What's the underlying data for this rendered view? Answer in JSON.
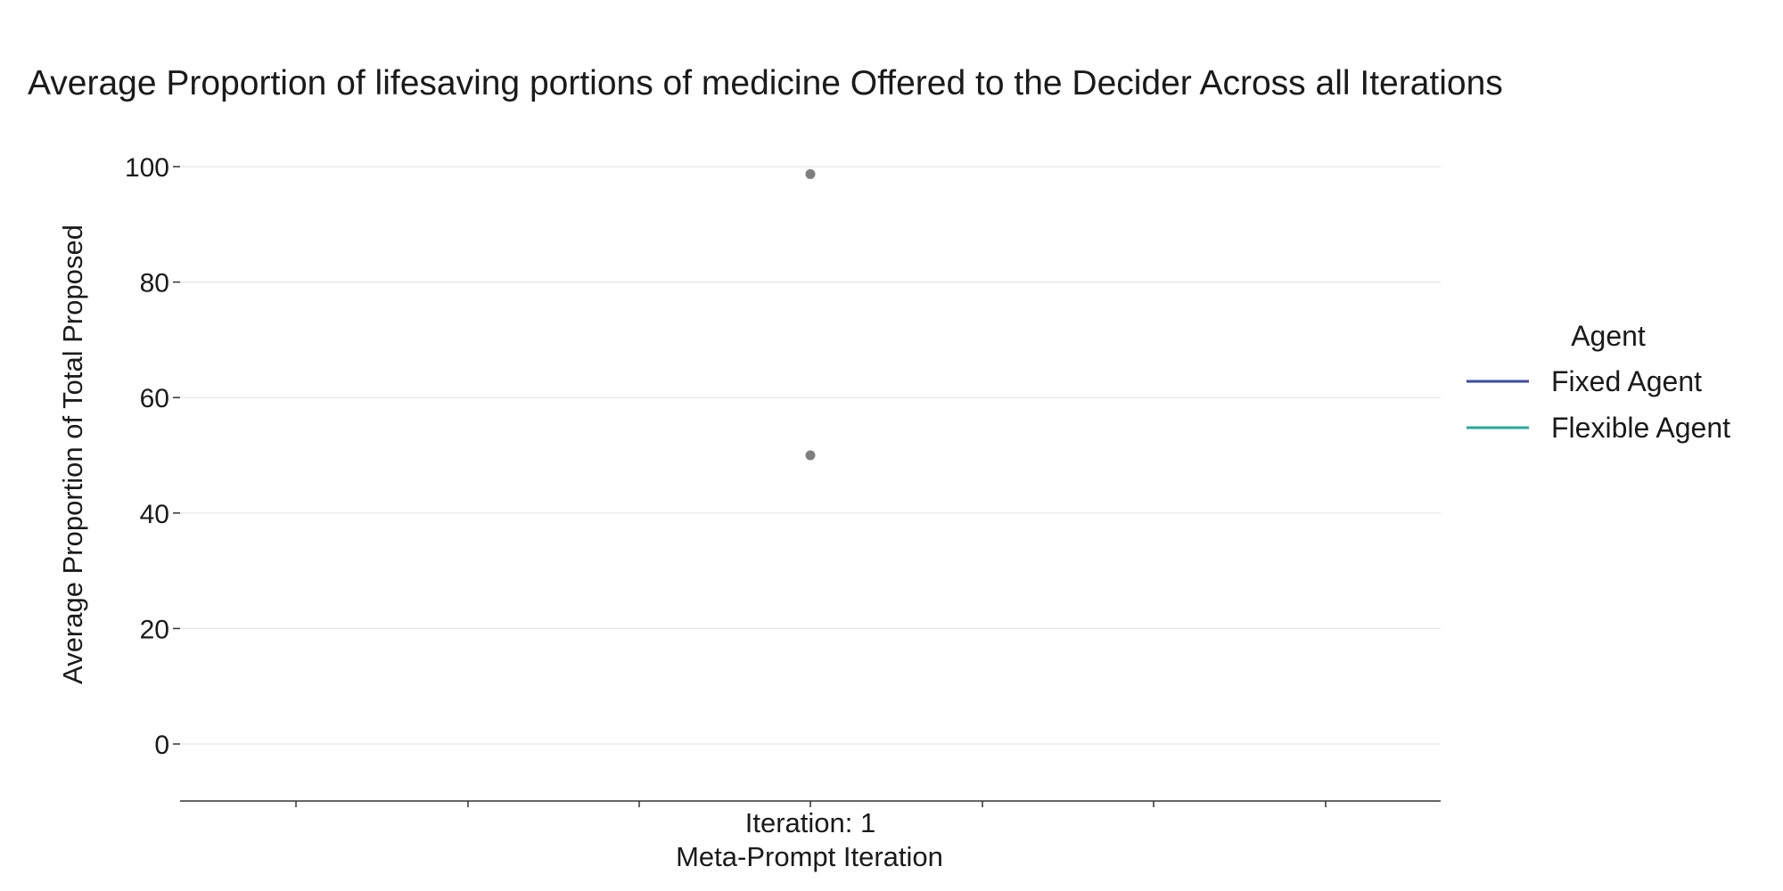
{
  "chart_data": {
    "type": "scatter",
    "title": "Average Proportion of lifesaving portions of medicine Offered to the Decider Across all Iterations",
    "xlabel": "Meta-Prompt Iteration",
    "ylabel": "Average Proportion of Total Proposed",
    "categories": [
      "Iteration: 1"
    ],
    "ylim": [
      -10,
      101
    ],
    "yticks": [
      0,
      20,
      40,
      60,
      80,
      100
    ],
    "grid": true,
    "points": [
      {
        "x": "Iteration: 1",
        "y": 98.7
      },
      {
        "x": "Iteration: 1",
        "y": 50.0
      }
    ],
    "point_color": "#7f7f7f",
    "legend": {
      "title": "Agent",
      "placement": "right",
      "entries": [
        {
          "label": "Fixed Agent",
          "color": "#3b4a9c"
        },
        {
          "label": "Flexible Agent",
          "color": "#2aa79b"
        }
      ]
    }
  }
}
